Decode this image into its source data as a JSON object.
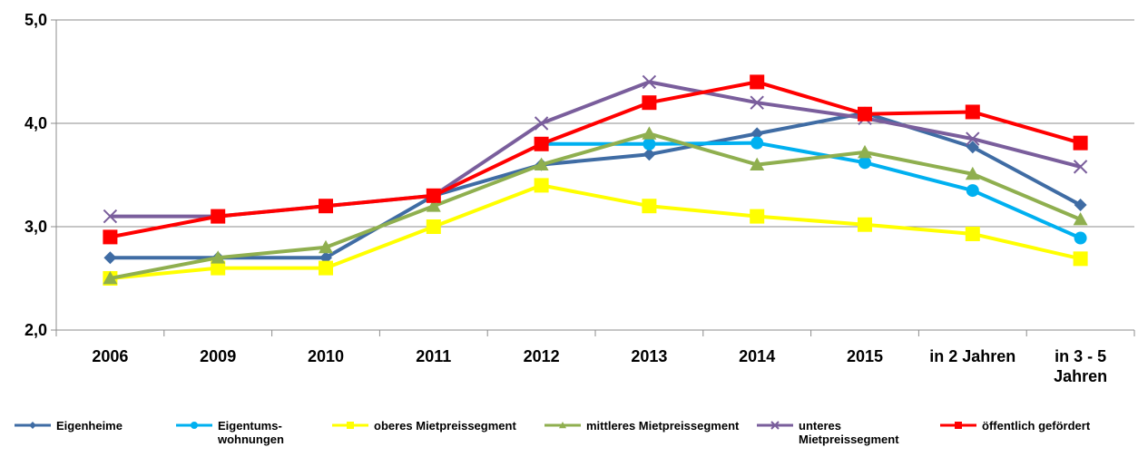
{
  "chart_data": {
    "type": "line",
    "categories": [
      "2006",
      "2009",
      "2010",
      "2011",
      "2012",
      "2013",
      "2014",
      "2015",
      "in 2 Jahren",
      "in 3 - 5 Jahren"
    ],
    "ylim": [
      2,
      5
    ],
    "yticks": [
      {
        "value": 2,
        "label": "2,0"
      },
      {
        "value": 3,
        "label": "3,0"
      },
      {
        "value": 4,
        "label": "4,0"
      },
      {
        "value": 5,
        "label": "5,0"
      }
    ],
    "grid": true,
    "legend": "bottom",
    "series": [
      {
        "name": "Eigenheime",
        "color": "#3f6ca4",
        "marker": "diamond",
        "values": [
          2.7,
          2.7,
          2.7,
          3.3,
          3.6,
          3.7,
          3.9,
          4.1,
          3.77,
          3.21
        ]
      },
      {
        "name": "Eigentums- wohnungen",
        "color": "#00b0f0",
        "marker": "circle",
        "values": [
          null,
          null,
          null,
          null,
          3.8,
          3.8,
          3.81,
          3.62,
          3.35,
          2.89
        ]
      },
      {
        "name": "oberes Mietpreissegment",
        "color": "#ffff00",
        "marker": "square",
        "values": [
          2.5,
          2.6,
          2.6,
          3.0,
          3.4,
          3.2,
          3.1,
          3.02,
          2.93,
          2.69
        ]
      },
      {
        "name": "mittleres Mietpreissegment",
        "color": "#8faf4f",
        "marker": "triangle",
        "values": [
          2.5,
          2.7,
          2.8,
          3.2,
          3.6,
          3.9,
          3.6,
          3.72,
          3.51,
          3.07
        ]
      },
      {
        "name": "unteres Mietpreissegment",
        "color": "#7a5e9c",
        "marker": "x",
        "values": [
          3.1,
          3.1,
          3.2,
          3.3,
          4.0,
          4.4,
          4.2,
          4.05,
          3.85,
          3.58
        ]
      },
      {
        "name": "öffentlich gefördert",
        "color": "#ff0000",
        "marker": "square",
        "values": [
          2.9,
          3.1,
          3.2,
          3.3,
          3.8,
          4.2,
          4.4,
          4.09,
          4.11,
          3.81
        ]
      }
    ]
  }
}
